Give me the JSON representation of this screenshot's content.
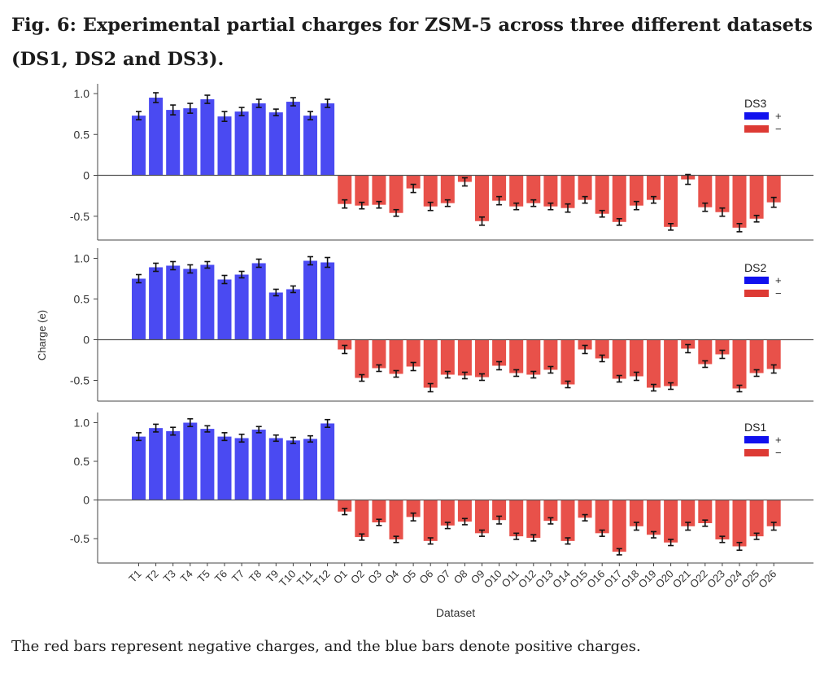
{
  "figure": {
    "title": "Fig. 6: Experimental partial charges for ZSM-5 across three different datasets (DS1, DS2 and DS3).",
    "caption": "The red bars represent negative charges, and the blue bars denote positive charges."
  },
  "colors": {
    "positive": "#4a4af2",
    "negative": "#e8514a",
    "legend_positive": "#1111ee",
    "legend_negative": "#dd3a34",
    "errorbar": "#111111"
  },
  "chart_data": [
    {
      "type": "bar",
      "dataset": "DS3",
      "legend": {
        "title": "DS3",
        "positive": "+",
        "negative": "−",
        "placement": "top-right"
      },
      "categories": [
        "T1",
        "T2",
        "T3",
        "T4",
        "T5",
        "T6",
        "T7",
        "T8",
        "T9",
        "T10",
        "T11",
        "T12",
        "O1",
        "O2",
        "O3",
        "O4",
        "O5",
        "O6",
        "O7",
        "O8",
        "O9",
        "O10",
        "O11",
        "O12",
        "O13",
        "O14",
        "O15",
        "O16",
        "O17",
        "O18",
        "O19",
        "O20",
        "O21",
        "O22",
        "O23",
        "O24",
        "O25",
        "O26"
      ],
      "values": [
        0.73,
        0.95,
        0.8,
        0.82,
        0.93,
        0.72,
        0.78,
        0.88,
        0.77,
        0.9,
        0.73,
        0.88,
        -0.35,
        -0.37,
        -0.36,
        -0.46,
        -0.16,
        -0.38,
        -0.34,
        -0.08,
        -0.56,
        -0.31,
        -0.38,
        -0.34,
        -0.38,
        -0.4,
        -0.3,
        -0.47,
        -0.57,
        -0.37,
        -0.3,
        -0.63,
        -0.05,
        -0.39,
        -0.45,
        -0.64,
        -0.53,
        -0.33
      ],
      "errors": [
        0.05,
        0.06,
        0.06,
        0.06,
        0.05,
        0.06,
        0.05,
        0.05,
        0.04,
        0.05,
        0.05,
        0.05,
        0.05,
        0.04,
        0.04,
        0.04,
        0.05,
        0.05,
        0.04,
        0.05,
        0.05,
        0.05,
        0.04,
        0.04,
        0.04,
        0.05,
        0.04,
        0.04,
        0.04,
        0.05,
        0.04,
        0.04,
        0.06,
        0.05,
        0.05,
        0.05,
        0.04,
        0.06
      ],
      "ylim": [
        -0.78,
        1.1
      ],
      "yticks": [
        1.0,
        0.5,
        0,
        -0.5
      ],
      "ytick_labels": [
        "1.0",
        "0.5",
        "0",
        "-0.5"
      ]
    },
    {
      "type": "bar",
      "dataset": "DS2",
      "legend": {
        "title": "DS2",
        "positive": "+",
        "negative": "−",
        "placement": "top-right"
      },
      "categories": [
        "T1",
        "T2",
        "T3",
        "T4",
        "T5",
        "T6",
        "T7",
        "T8",
        "T9",
        "T10",
        "T11",
        "T12",
        "O1",
        "O2",
        "O3",
        "O4",
        "O5",
        "O6",
        "O7",
        "O8",
        "O9",
        "O10",
        "O11",
        "O12",
        "O13",
        "O14",
        "O15",
        "O16",
        "O17",
        "O18",
        "O19",
        "O20",
        "O21",
        "O22",
        "O23",
        "O24",
        "O25",
        "O26"
      ],
      "values": [
        0.75,
        0.89,
        0.91,
        0.87,
        0.92,
        0.74,
        0.8,
        0.94,
        0.58,
        0.62,
        0.97,
        0.95,
        -0.12,
        -0.47,
        -0.35,
        -0.42,
        -0.33,
        -0.59,
        -0.43,
        -0.44,
        -0.46,
        -0.32,
        -0.41,
        -0.43,
        -0.37,
        -0.55,
        -0.12,
        -0.23,
        -0.48,
        -0.45,
        -0.59,
        -0.57,
        -0.11,
        -0.3,
        -0.18,
        -0.6,
        -0.41,
        -0.36
      ],
      "errors": [
        0.05,
        0.05,
        0.05,
        0.05,
        0.04,
        0.05,
        0.04,
        0.05,
        0.04,
        0.04,
        0.05,
        0.06,
        0.05,
        0.04,
        0.04,
        0.04,
        0.05,
        0.05,
        0.04,
        0.04,
        0.04,
        0.05,
        0.04,
        0.04,
        0.04,
        0.04,
        0.05,
        0.04,
        0.04,
        0.05,
        0.04,
        0.04,
        0.05,
        0.04,
        0.05,
        0.04,
        0.04,
        0.05
      ],
      "ylim": [
        -0.72,
        1.1
      ],
      "yticks": [
        1.0,
        0.5,
        0,
        -0.5
      ],
      "ytick_labels": [
        "1.0",
        "0.5",
        "0",
        "-0.5"
      ]
    },
    {
      "type": "bar",
      "dataset": "DS1",
      "legend": {
        "title": "DS1",
        "positive": "+",
        "negative": "−",
        "placement": "top-right"
      },
      "categories": [
        "T1",
        "T2",
        "T3",
        "T4",
        "T5",
        "T6",
        "T7",
        "T8",
        "T9",
        "T10",
        "T11",
        "T12",
        "O1",
        "O2",
        "O3",
        "O4",
        "O5",
        "O6",
        "O7",
        "O8",
        "O9",
        "O10",
        "O11",
        "O12",
        "O13",
        "O14",
        "O15",
        "O16",
        "O17",
        "O18",
        "O19",
        "O20",
        "O21",
        "O22",
        "O23",
        "O24",
        "O25",
        "O26"
      ],
      "values": [
        0.82,
        0.93,
        0.89,
        1.0,
        0.92,
        0.82,
        0.8,
        0.91,
        0.8,
        0.77,
        0.79,
        0.99,
        -0.15,
        -0.48,
        -0.29,
        -0.51,
        -0.22,
        -0.53,
        -0.33,
        -0.28,
        -0.43,
        -0.26,
        -0.47,
        -0.49,
        -0.27,
        -0.53,
        -0.23,
        -0.43,
        -0.67,
        -0.34,
        -0.45,
        -0.55,
        -0.34,
        -0.3,
        -0.51,
        -0.6,
        -0.47,
        -0.34
      ],
      "errors": [
        0.05,
        0.05,
        0.05,
        0.05,
        0.04,
        0.05,
        0.05,
        0.04,
        0.04,
        0.04,
        0.04,
        0.05,
        0.04,
        0.04,
        0.04,
        0.04,
        0.05,
        0.04,
        0.04,
        0.04,
        0.04,
        0.05,
        0.04,
        0.04,
        0.04,
        0.04,
        0.04,
        0.04,
        0.04,
        0.05,
        0.04,
        0.04,
        0.05,
        0.04,
        0.04,
        0.05,
        0.04,
        0.05
      ],
      "ylim": [
        -0.78,
        1.1
      ],
      "yticks": [
        1.0,
        0.5,
        0,
        -0.5
      ],
      "ytick_labels": [
        "1.0",
        "0.5",
        "0",
        "-0.5"
      ]
    }
  ],
  "axes": {
    "ylabel": "Charge (e)",
    "xlabel": "Dataset"
  }
}
